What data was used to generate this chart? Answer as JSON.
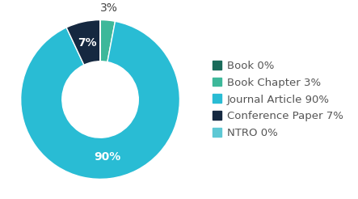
{
  "labels": [
    "Book",
    "Book Chapter",
    "Journal Article",
    "Conference Paper",
    "NTRO"
  ],
  "values": [
    0.0001,
    3,
    90,
    7,
    0.0001
  ],
  "colors": [
    "#1a6b5a",
    "#3db89a",
    "#29bcd4",
    "#152840",
    "#5dc8d4"
  ],
  "legend_labels": [
    "Book 0%",
    "Book Chapter 3%",
    "Journal Article 90%",
    "Conference Paper 7%",
    "NTRO 0%"
  ],
  "pct_labels": [
    "",
    "3%",
    "90%",
    "7%",
    ""
  ],
  "pct_outside": [
    false,
    true,
    false,
    false,
    false
  ],
  "background_color": "#ffffff",
  "text_color": "#555555",
  "label_fontsize": 10,
  "legend_fontsize": 9.5,
  "donut_width": 0.52,
  "startangle": 90
}
